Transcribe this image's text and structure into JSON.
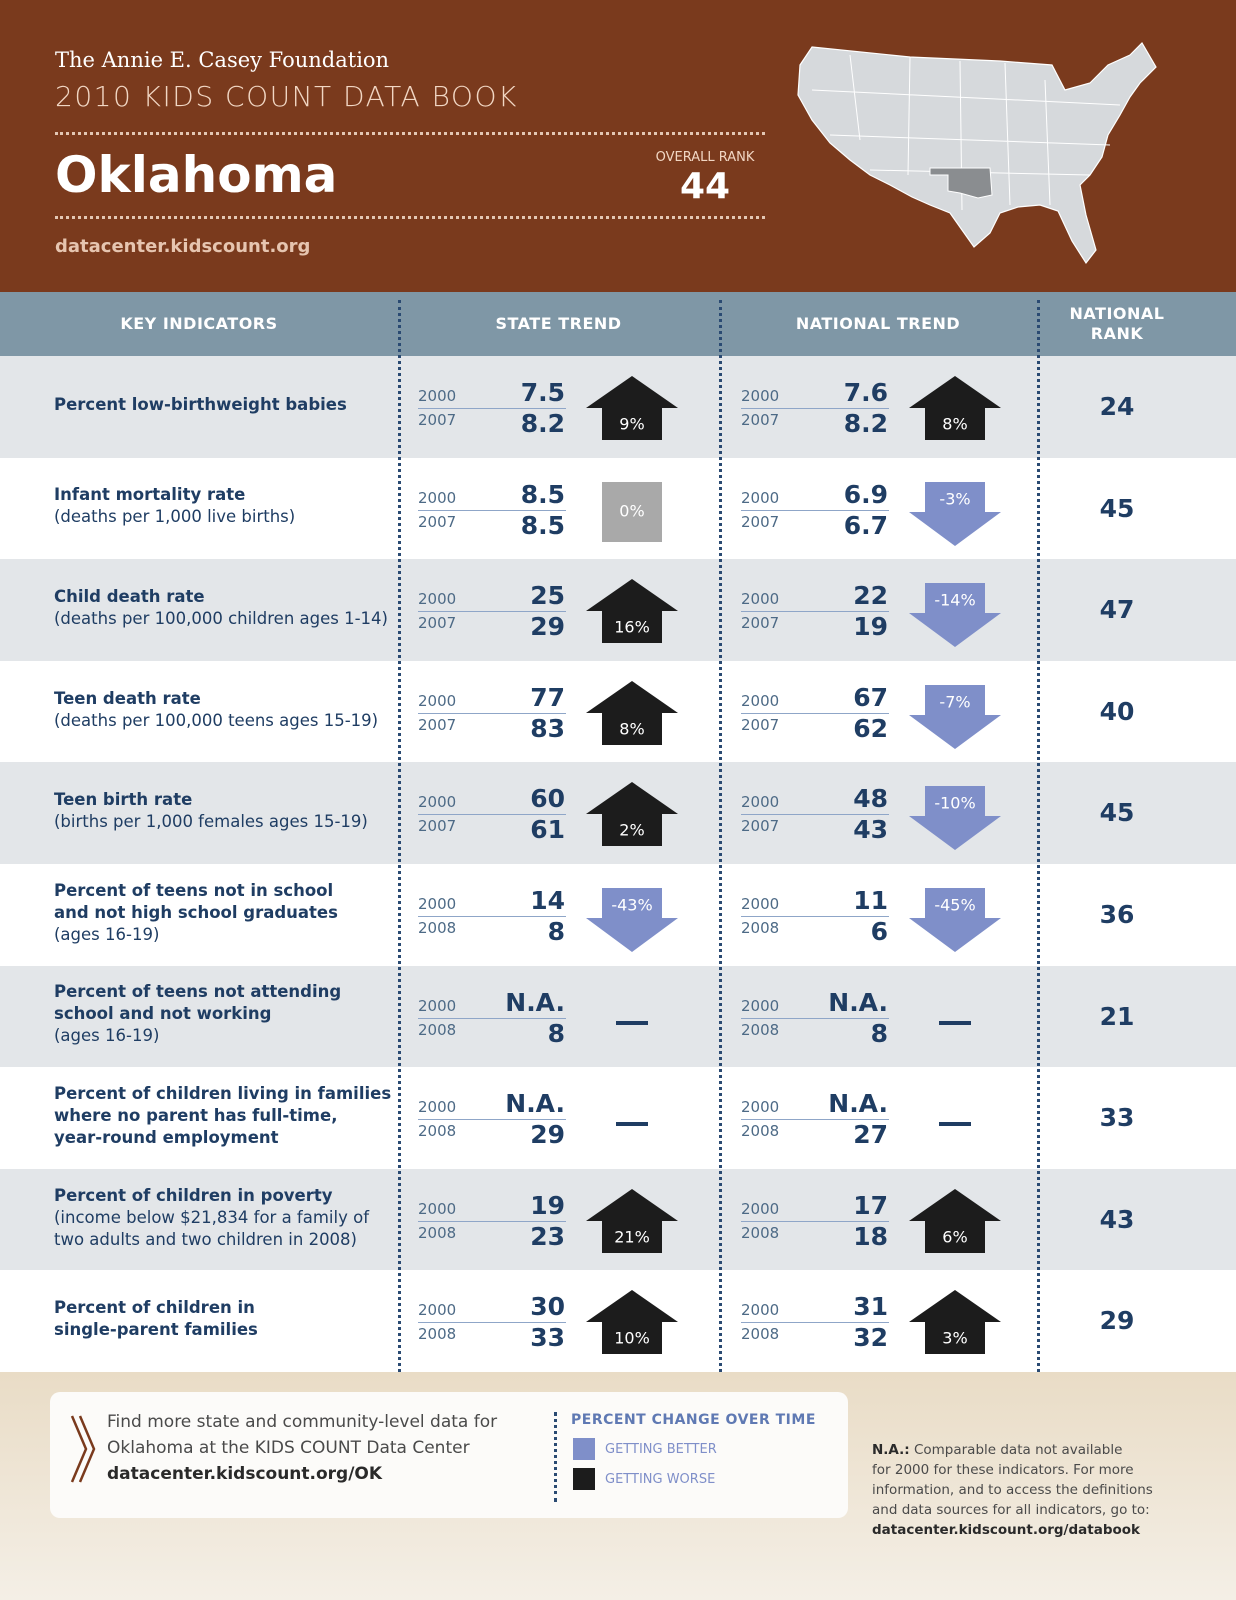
{
  "header": {
    "foundation": "The Annie E. Casey Foundation",
    "book": "2010 KIDS COUNT DATA BOOK",
    "state": "Oklahoma",
    "rank_label": "OVERALL RANK",
    "rank": 44,
    "url": "datacenter.kidscount.org"
  },
  "table": {
    "headers": [
      "KEY INDICATORS",
      "STATE TREND",
      "NATIONAL TREND",
      [
        "NATIONAL",
        "RANK"
      ]
    ],
    "rows": [
      {
        "name": [
          "Percent low-birthweight babies"
        ],
        "note": [],
        "state": {
          "years": [
            2000,
            2007
          ],
          "values": [
            "7.5",
            "8.2"
          ],
          "change": "9%",
          "direction": "up",
          "color": "#1c1c1c"
        },
        "national": {
          "years": [
            2000,
            2007
          ],
          "values": [
            "7.6",
            "8.2"
          ],
          "change": "8%",
          "direction": "up",
          "color": "#1c1c1c"
        },
        "rank": 24
      },
      {
        "name": [
          "Infant mortality rate"
        ],
        "note": [
          "(deaths per 1,000 live births)"
        ],
        "state": {
          "years": [
            2000,
            2007
          ],
          "values": [
            "8.5",
            "8.5"
          ],
          "change": "0%",
          "direction": "flat",
          "color": "#a9a9a9"
        },
        "national": {
          "years": [
            2000,
            2007
          ],
          "values": [
            "6.9",
            "6.7"
          ],
          "change": "-3%",
          "direction": "down",
          "color": "#7f8fc9"
        },
        "rank": 45
      },
      {
        "name": [
          "Child death rate"
        ],
        "note": [
          "(deaths per 100,000 children ages 1-14)"
        ],
        "state": {
          "years": [
            2000,
            2007
          ],
          "values": [
            "25",
            "29"
          ],
          "change": "16%",
          "direction": "up",
          "color": "#1c1c1c"
        },
        "national": {
          "years": [
            2000,
            2007
          ],
          "values": [
            "22",
            "19"
          ],
          "change": "-14%",
          "direction": "down",
          "color": "#7f8fc9"
        },
        "rank": 47
      },
      {
        "name": [
          "Teen death rate"
        ],
        "note": [
          "(deaths per 100,000 teens ages 15-19)"
        ],
        "state": {
          "years": [
            2000,
            2007
          ],
          "values": [
            "77",
            "83"
          ],
          "change": "8%",
          "direction": "up",
          "color": "#1c1c1c"
        },
        "national": {
          "years": [
            2000,
            2007
          ],
          "values": [
            "67",
            "62"
          ],
          "change": "-7%",
          "direction": "down",
          "color": "#7f8fc9"
        },
        "rank": 40
      },
      {
        "name": [
          "Teen birth rate"
        ],
        "note": [
          "(births per 1,000 females ages 15-19)"
        ],
        "state": {
          "years": [
            2000,
            2007
          ],
          "values": [
            "60",
            "61"
          ],
          "change": "2%",
          "direction": "up",
          "color": "#1c1c1c"
        },
        "national": {
          "years": [
            2000,
            2007
          ],
          "values": [
            "48",
            "43"
          ],
          "change": "-10%",
          "direction": "down",
          "color": "#7f8fc9"
        },
        "rank": 45
      },
      {
        "name": [
          "Percent of teens not in school",
          "and not high school graduates"
        ],
        "note": [
          "(ages 16-19)"
        ],
        "state": {
          "years": [
            2000,
            2008
          ],
          "values": [
            "14",
            "8"
          ],
          "change": "-43%",
          "direction": "down",
          "color": "#7f8fc9"
        },
        "national": {
          "years": [
            2000,
            2008
          ],
          "values": [
            "11",
            "6"
          ],
          "change": "-45%",
          "direction": "down",
          "color": "#7f8fc9"
        },
        "rank": 36
      },
      {
        "name": [
          "Percent of teens not attending",
          "school and not working"
        ],
        "note": [
          "(ages 16-19)"
        ],
        "state": {
          "years": [
            2000,
            2008
          ],
          "values": [
            "N.A.",
            "8"
          ],
          "change": null
        },
        "national": {
          "years": [
            2000,
            2008
          ],
          "values": [
            "N.A.",
            "8"
          ],
          "change": null
        },
        "rank": 21
      },
      {
        "name": [
          "Percent of children living in families",
          "where no parent has full-time,",
          "year-round employment"
        ],
        "note": [],
        "state": {
          "years": [
            2000,
            2008
          ],
          "values": [
            "N.A.",
            "29"
          ],
          "change": null
        },
        "national": {
          "years": [
            2000,
            2008
          ],
          "values": [
            "N.A.",
            "27"
          ],
          "change": null
        },
        "rank": 33
      },
      {
        "name": [
          "Percent of children in poverty"
        ],
        "note": [
          "(income below $21,834 for a family of",
          "two adults and two children in 2008)"
        ],
        "state": {
          "years": [
            2000,
            2008
          ],
          "values": [
            "19",
            "23"
          ],
          "change": "21%",
          "direction": "up",
          "color": "#1c1c1c"
        },
        "national": {
          "years": [
            2000,
            2008
          ],
          "values": [
            "17",
            "18"
          ],
          "change": "6%",
          "direction": "up",
          "color": "#1c1c1c"
        },
        "rank": 43
      },
      {
        "name": [
          "Percent of children in",
          "single-parent families"
        ],
        "note": [],
        "state": {
          "years": [
            2000,
            2008
          ],
          "values": [
            "30",
            "33"
          ],
          "change": "10%",
          "direction": "up",
          "color": "#1c1c1c"
        },
        "national": {
          "years": [
            2000,
            2008
          ],
          "values": [
            "31",
            "32"
          ],
          "change": "3%",
          "direction": "up",
          "color": "#1c1c1c"
        },
        "rank": 29
      }
    ]
  },
  "footer": {
    "find_more": [
      "Find more state and community-level data for",
      "Oklahoma at the KIDS COUNT Data Center"
    ],
    "find_url": "datacenter.kidscount.org/OK",
    "legend": {
      "title": "PERCENT CHANGE OVER TIME",
      "items": [
        {
          "label": "GETTING BETTER",
          "color": "#7f8fc9"
        },
        {
          "label": "GETTING WORSE",
          "color": "#1c1c1c"
        }
      ]
    },
    "note": {
      "label": "N.A.:",
      "lines": [
        " Comparable data not available",
        "for 2000 for these indicators. For more",
        "information, and to access the definitions",
        "and data sources for all indicators, go to:"
      ],
      "url": "datacenter.kidscount.org/databook"
    }
  }
}
